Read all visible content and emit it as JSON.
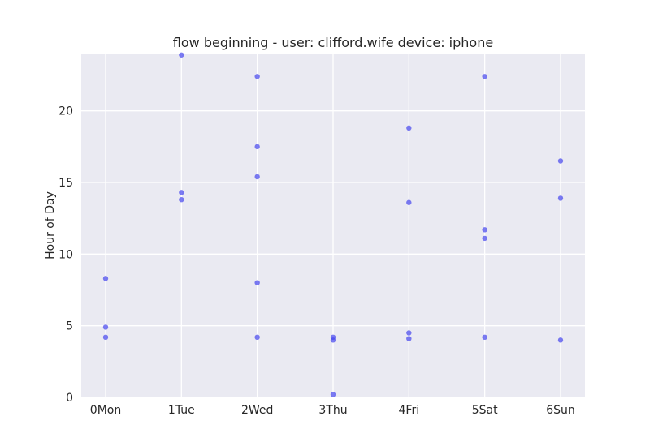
{
  "chart_data": {
    "type": "scatter",
    "title": "flow beginning - user: clifford.wife device: iphone",
    "xlabel": "",
    "ylabel": "Hour of Day",
    "categories": [
      "0Mon",
      "1Tue",
      "2Wed",
      "3Thu",
      "4Fri",
      "5Sat",
      "6Sun"
    ],
    "yticks": [
      0,
      5,
      10,
      15,
      20
    ],
    "ylim": [
      0,
      24
    ],
    "grid": true,
    "point_color": "#4444ee",
    "background_color": "#eaeaf2",
    "points": [
      {
        "x": 0,
        "y": 8.3
      },
      {
        "x": 0,
        "y": 4.9
      },
      {
        "x": 0,
        "y": 4.2
      },
      {
        "x": 1,
        "y": 23.9
      },
      {
        "x": 1,
        "y": 14.3
      },
      {
        "x": 1,
        "y": 13.8
      },
      {
        "x": 2,
        "y": 22.4
      },
      {
        "x": 2,
        "y": 17.5
      },
      {
        "x": 2,
        "y": 15.4
      },
      {
        "x": 2,
        "y": 8.0
      },
      {
        "x": 2,
        "y": 4.2
      },
      {
        "x": 3,
        "y": 4.2
      },
      {
        "x": 3,
        "y": 4.0
      },
      {
        "x": 3,
        "y": 0.2
      },
      {
        "x": 4,
        "y": 18.8
      },
      {
        "x": 4,
        "y": 13.6
      },
      {
        "x": 4,
        "y": 4.5
      },
      {
        "x": 4,
        "y": 4.1
      },
      {
        "x": 5,
        "y": 22.4
      },
      {
        "x": 5,
        "y": 11.7
      },
      {
        "x": 5,
        "y": 11.1
      },
      {
        "x": 5,
        "y": 4.2
      },
      {
        "x": 6,
        "y": 16.5
      },
      {
        "x": 6,
        "y": 13.9
      },
      {
        "x": 6,
        "y": 4.0
      }
    ]
  }
}
